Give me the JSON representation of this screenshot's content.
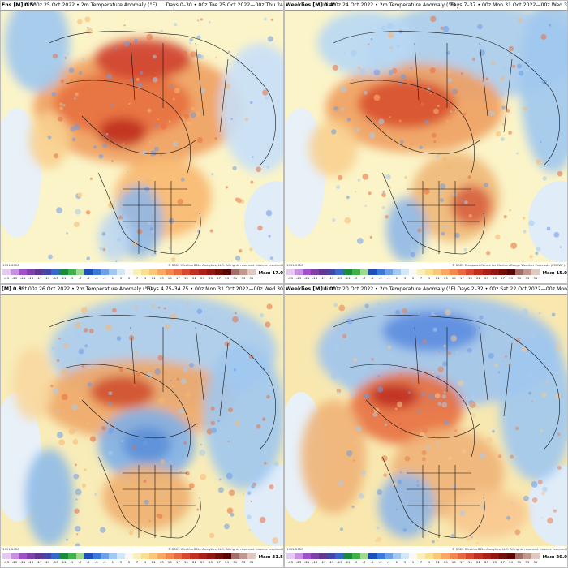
{
  "panels": [
    {
      "model": "Ens [M] 0.5°",
      "init": "Init 00z 25 Oct 2022 • 2m Temperature Anomaly (°F)",
      "days": "Days 0–30 • 00z Tue 25 Oct 2022—00z Thu 24",
      "credit": "© 2022 WeatherBELL Analytics, LLC. All rights reserved. License required for commercial use.",
      "credit_left": "1991-2020",
      "max_label": "Max:",
      "max_value": "17.0",
      "theme": "warm"
    },
    {
      "model": "Weeklies [M] 0.4°",
      "init": "Init 00z 24 Oct 2022 • 2m Temperature Anomaly (°F)",
      "days": "Days 7–37 • 00z Mon 31 Oct 2022—00z Wed 3",
      "credit": "© 2022 European Centre for Medium-Range Weather Forecasts (ECMWF). This service is based on data and products",
      "credit_left": "1991-2020",
      "max_label": "Max:",
      "max_value": "15.0",
      "theme": "warm2"
    },
    {
      "model": "[M] 0.5°",
      "init": "Init 00z 26 Oct 2022 • 2m Temperature Anomaly (°F)",
      "days": "Days 4.75–34.75 • 00z Mon 31 Oct 2022—00z Wed 30",
      "credit": "© 2022 WeatherBELL Analytics, LLC. All rights reserved. License required for commercial use.",
      "credit_left": "1991-2020",
      "max_label": "Max:",
      "max_value": "31.5",
      "theme": "mixed"
    },
    {
      "model": "Weeklies [M] 1.0°",
      "init": "Init 00z 20 Oct 2022 • 2m Temperature Anomaly (°F)",
      "days": "Days 2–32 • 00z Sat 22 Oct 2022—00z Mon",
      "credit": "© 2022 WeatherBELL Analytics, LLC. All rights reserved. License required for commercial use.",
      "credit_left": "1991-2020",
      "max_label": "Max:",
      "max_value": "20.0",
      "theme": "cool"
    }
  ],
  "colorbar": {
    "labels": [
      "-25",
      "-23",
      "-21",
      "-19",
      "-17",
      "-15",
      "-13",
      "-11",
      "-9",
      "-7",
      "-5",
      "-3",
      "-1",
      "1",
      "3",
      "5",
      "7",
      "9",
      "11",
      "13",
      "15",
      "17",
      "19",
      "21",
      "23",
      "25",
      "27",
      "29",
      "31",
      "33",
      "35"
    ],
    "colors": [
      "#e6c8f0",
      "#c890e0",
      "#a050c8",
      "#8040a8",
      "#603890",
      "#4048a8",
      "#3868c8",
      "#1c8a3c",
      "#40b048",
      "#a0d890",
      "#1c50b8",
      "#3c78d8",
      "#6ca0e8",
      "#a0c8f0",
      "#d0e8f8",
      "#f8f8f8",
      "#f8f0b8",
      "#f8e090",
      "#f8c878",
      "#f8a860",
      "#f08850",
      "#e86840",
      "#d84830",
      "#c03020",
      "#a82018",
      "#901810",
      "#701008",
      "#580808",
      "#a07068",
      "#c09890",
      "#e0c8c0"
    ]
  }
}
